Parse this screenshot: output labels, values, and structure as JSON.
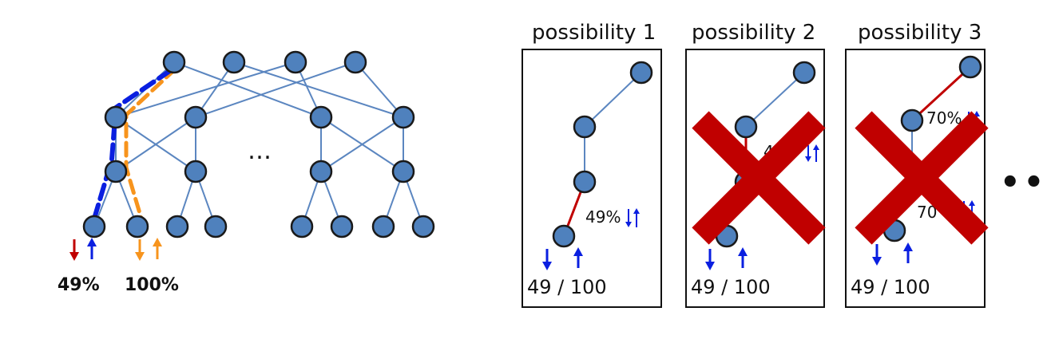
{
  "left_tree": {
    "middle_ellipsis": "…",
    "left_leaf_percent": "49%",
    "right_leaf_percent": "100%"
  },
  "panels": [
    {
      "title": "possibility 1",
      "link_label": "49%",
      "ratio": "49 / 100",
      "eliminated": false
    },
    {
      "title": "possibility 2",
      "link_label": "4",
      "ratio": "49 / 100",
      "eliminated": true
    },
    {
      "title": "possibility 3",
      "link_label_top": "70%",
      "link_label_bottom": "70",
      "ratio": "49 / 100",
      "eliminated": true
    }
  ],
  "more_indicator": "•••",
  "colors": {
    "node_fill": "#4f81bd",
    "node_stroke": "#1a1a1a",
    "link": "#5b86c0",
    "path_blue": "#0a1fe0",
    "path_orange": "#f7941d",
    "arrow_red": "#c00000",
    "arrow_blue": "#0a1fe0",
    "cross_red": "#c00000"
  }
}
